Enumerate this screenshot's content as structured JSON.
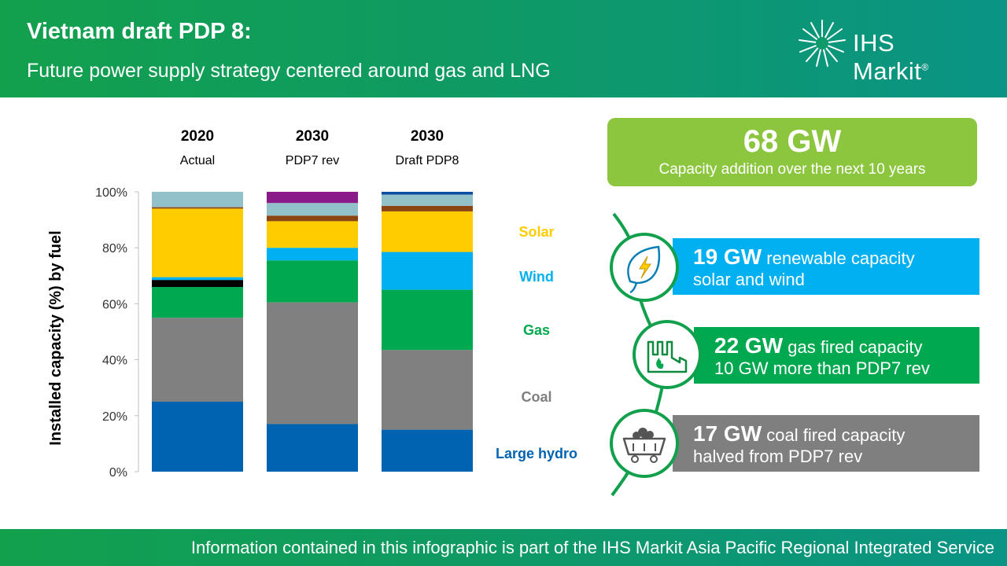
{
  "header": {
    "title": "Vietnam draft PDP 8:",
    "subtitle": "Future power supply strategy centered around gas and LNG",
    "logo_text": "IHS Markit",
    "logo_mark": "®"
  },
  "chart_data": {
    "type": "bar",
    "stacked": true,
    "ylabel": "Installed capacity (%) by fuel",
    "ylim": [
      0,
      100
    ],
    "yticks": [
      "0%",
      "20%",
      "40%",
      "60%",
      "80%",
      "100%"
    ],
    "grid": false,
    "categories": [
      {
        "year": "2020",
        "label": "Actual"
      },
      {
        "year": "2030",
        "label": "PDP7 rev"
      },
      {
        "year": "2030",
        "label": "Draft PDP8"
      }
    ],
    "series": [
      {
        "name": "Large hydro",
        "color": "#0063b1",
        "values": [
          25,
          17,
          15
        ]
      },
      {
        "name": "Coal",
        "color": "#808080",
        "values": [
          30,
          43.5,
          28.5
        ]
      },
      {
        "name": "Gas",
        "color": "#00a84f",
        "values": [
          11,
          15,
          21.5
        ]
      },
      {
        "color": "#000000",
        "values": [
          2.5,
          0,
          0
        ]
      },
      {
        "name": "Wind",
        "color": "#00b0f0",
        "values": [
          1,
          4.5,
          13.5
        ]
      },
      {
        "name": "Solar",
        "color": "#ffcc00",
        "values": [
          24.5,
          9.5,
          14.5
        ]
      },
      {
        "color": "#8b4513",
        "values": [
          0.5,
          2,
          2
        ]
      },
      {
        "color": "#92c1c9",
        "values": [
          5.5,
          4.5,
          4
        ]
      },
      {
        "color": "#8b1a89",
        "values": [
          0,
          4,
          0
        ]
      },
      {
        "color": "#0b4ea2",
        "values": [
          0,
          0,
          1
        ]
      }
    ],
    "legend": [
      {
        "name": "Solar",
        "color": "#ffcc00"
      },
      {
        "name": "Wind",
        "color": "#00b0f0"
      },
      {
        "name": "Gas",
        "color": "#00a84f"
      },
      {
        "name": "Coal",
        "color": "#7f7f7f"
      },
      {
        "name": "Large hydro",
        "color": "#0063b1"
      }
    ]
  },
  "highlight": {
    "value": "68 GW",
    "text": "Capacity addition over the next 10 years"
  },
  "items": [
    {
      "value": "19 GW",
      "label": "renewable capacity",
      "line2": "solar and wind",
      "color": "#00b0f0",
      "icon": "leaf-lightning-icon"
    },
    {
      "value": "22 GW",
      "label": "gas fired capacity",
      "line2": "10 GW more than PDP7 rev",
      "color": "#00a84f",
      "icon": "gas-plant-icon"
    },
    {
      "value": "17 GW",
      "label": "coal fired capacity",
      "line2": "halved from PDP7 rev",
      "color": "#7f7f7f",
      "icon": "coal-cart-icon"
    }
  ],
  "footer": {
    "text": "Information contained in this infographic is part of the IHS Markit Asia Pacific Regional Integrated Service"
  }
}
